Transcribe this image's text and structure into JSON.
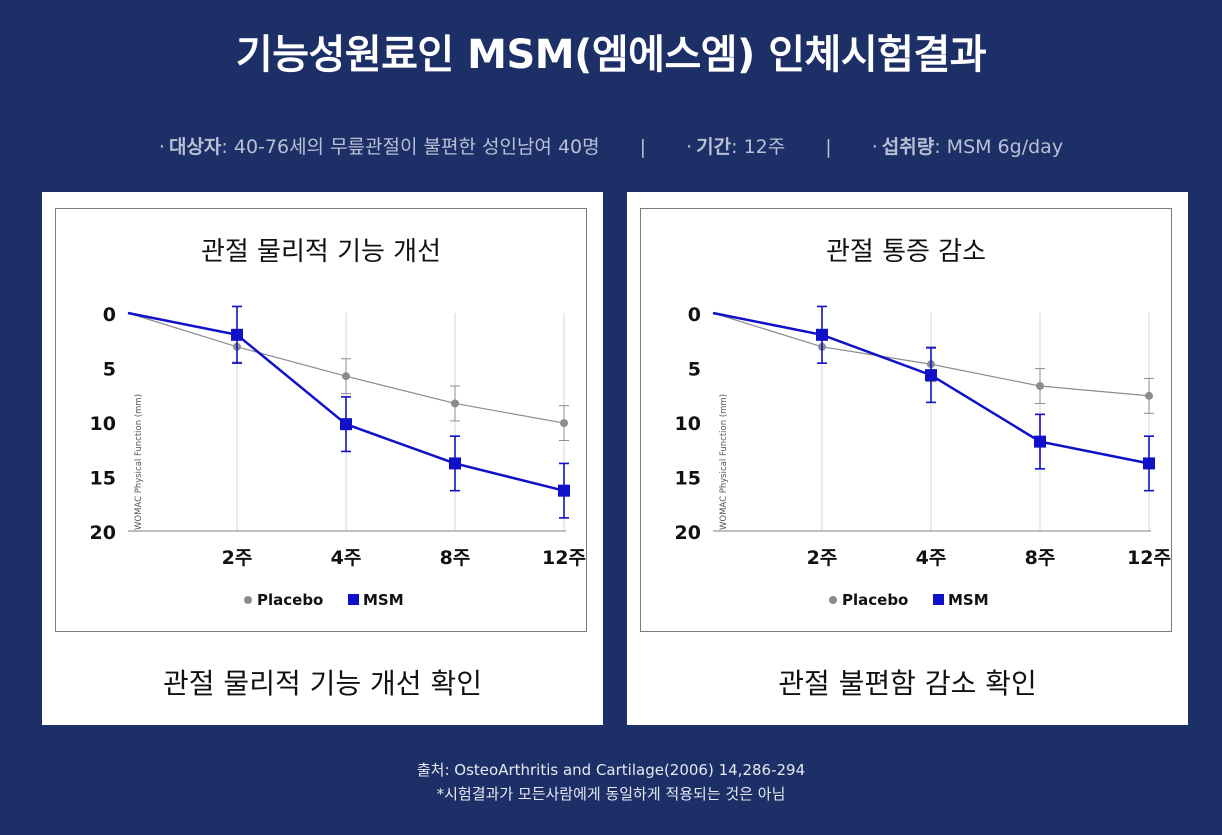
{
  "header": {
    "title": "기능성원료인 MSM(엠에스엠) 인체시험결과",
    "subject_label": "대상자",
    "subject_value": ": 40-76세의 무릎관절이 불편한 성인남여 40명",
    "period_label": "기간",
    "period_value": ": 12주",
    "dose_label": "섭취량",
    "dose_value": ": MSM 6g/day",
    "bullet": "·",
    "separator": "|"
  },
  "charts": [
    {
      "caption": "관절 물리적 기능 개선 확인"
    },
    {
      "caption": "관절 불편함 감소 확인"
    }
  ],
  "footer": {
    "source": "출처: OsteoArthritis and Cartilage(2006) 14,286-294",
    "note": "*시험결과가 모든사람에게 동일하게 적용되는 것은 아님"
  },
  "colors": {
    "background": "#1c2f66",
    "placebo": "#8c8c8c",
    "msm": "#1010c8"
  },
  "chart_data": [
    {
      "type": "line",
      "title": "관절 물리적 기능 개선",
      "ylabel": "WOMAC Physical Function (mm)",
      "categories": [
        "",
        "2주",
        "4주",
        "8주",
        "12주"
      ],
      "ylim": [
        20,
        0
      ],
      "yticks": [
        0,
        5,
        10,
        15,
        20
      ],
      "legend": "bottom",
      "series": [
        {
          "name": "Placebo",
          "marker": "circle",
          "values": [
            0,
            3.1,
            5.8,
            8.3,
            10.1
          ],
          "error": [
            0,
            1.4,
            1.6,
            1.6,
            1.6
          ]
        },
        {
          "name": "MSM",
          "marker": "square",
          "values": [
            0,
            2.0,
            10.2,
            13.8,
            16.3
          ],
          "error": [
            0,
            2.6,
            2.5,
            2.5,
            2.5
          ]
        }
      ]
    },
    {
      "type": "line",
      "title": "관절 통증 감소",
      "ylabel": "WOMAC Physical Function (mm)",
      "categories": [
        "",
        "2주",
        "4주",
        "8주",
        "12주"
      ],
      "ylim": [
        20,
        0
      ],
      "yticks": [
        0,
        5,
        10,
        15,
        20
      ],
      "legend": "bottom",
      "series": [
        {
          "name": "Placebo",
          "marker": "circle",
          "values": [
            0,
            3.1,
            4.7,
            6.7,
            7.6
          ],
          "error": [
            0,
            1.5,
            1.6,
            1.6,
            1.6
          ]
        },
        {
          "name": "MSM",
          "marker": "square",
          "values": [
            0,
            2.0,
            5.7,
            11.8,
            13.8
          ],
          "error": [
            0,
            2.6,
            2.5,
            2.5,
            2.5
          ]
        }
      ]
    }
  ]
}
